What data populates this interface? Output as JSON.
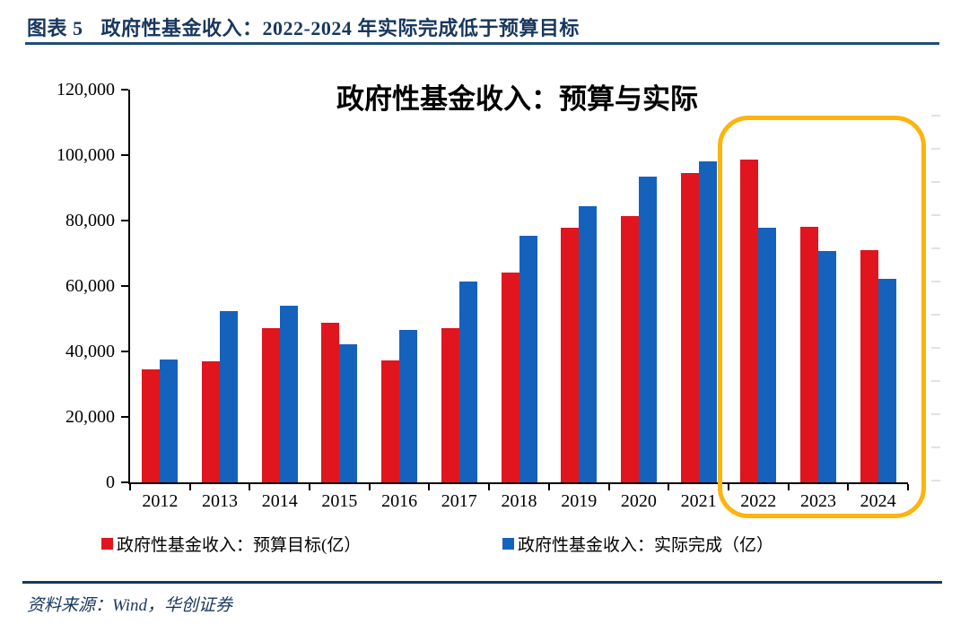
{
  "header": {
    "figure_label": "图表 5",
    "title": "政府性基金收入：2022-2024 年实际完成低于预算目标"
  },
  "chart_data": {
    "type": "bar",
    "title": "政府性基金收入：预算与实际",
    "categories": [
      "2012",
      "2013",
      "2014",
      "2015",
      "2016",
      "2017",
      "2018",
      "2019",
      "2020",
      "2021",
      "2022",
      "2023",
      "2024"
    ],
    "series": [
      {
        "name": "政府性基金收入：预算目标(亿）",
        "color": "#e1151d",
        "values": [
          34600,
          36900,
          47200,
          48900,
          37300,
          47200,
          64100,
          77700,
          81400,
          94500,
          98600,
          78200,
          70900
        ]
      },
      {
        "name": "政府性基金收入：实际完成（亿）",
        "color": "#1562bd",
        "values": [
          37500,
          52200,
          54100,
          42300,
          46600,
          61500,
          75400,
          84500,
          93500,
          98000,
          77900,
          70700,
          62100
        ]
      }
    ],
    "ylim": [
      0,
      120000
    ],
    "ytick_labels": [
      "0",
      "20,000",
      "40,000",
      "60,000",
      "80,000",
      "100,000",
      "120,000"
    ],
    "xlabel": "",
    "ylabel": "",
    "grid": false,
    "legend_position": "bottom",
    "highlight": {
      "categories": [
        "2022",
        "2023",
        "2024"
      ],
      "color": "#fcb40e",
      "shape": "rounded-rectangle"
    }
  },
  "colors": {
    "header_text": "#17375e",
    "rule": "#1f4e79",
    "axis": "#000000"
  },
  "source": {
    "text": "资料来源：Wind，华创证券"
  }
}
